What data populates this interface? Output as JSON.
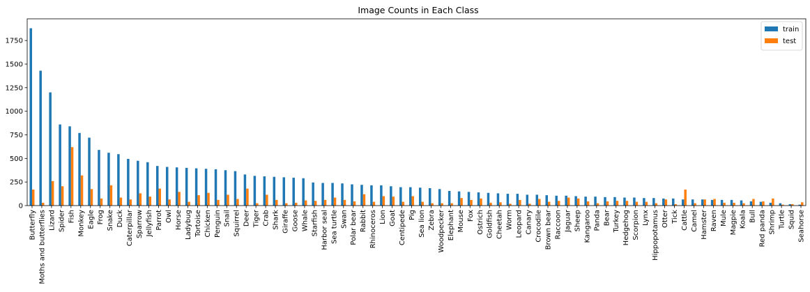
{
  "chart_data": {
    "type": "bar",
    "title": "Image Counts in Each Class",
    "xlabel": "",
    "ylabel": "",
    "ylim": [
      0,
      1980
    ],
    "yticks": [
      0,
      250,
      500,
      750,
      1000,
      1250,
      1500,
      1750
    ],
    "grid": false,
    "legend_position": "top-right",
    "categories": [
      "Butterfly",
      "Moths and butterflies",
      "Lizard",
      "Spider",
      "Fish",
      "Monkey",
      "Eagle",
      "Frog",
      "Snake",
      "Duck",
      "Caterpillar",
      "Sparrow",
      "Jellyfish",
      "Parrot",
      "Owl",
      "Horse",
      "Ladybug",
      "Tortoise",
      "Chicken",
      "Penguin",
      "Snail",
      "Squirrel",
      "Deer",
      "Tiger",
      "Crab",
      "Shark",
      "Giraffe",
      "Goose",
      "Whale",
      "Starfish",
      "Harbor seal",
      "Sea turtle",
      "Swan",
      "Polar bear",
      "Rabbit",
      "Rhinoceros",
      "Lion",
      "Goat",
      "Centipede",
      "Pig",
      "Sea lion",
      "Zebra",
      "Woodpecker",
      "Elephant",
      "Mouse",
      "Fox",
      "Ostrich",
      "Goldfish",
      "Cheetah",
      "Worm",
      "Leopard",
      "Canary",
      "Crocodile",
      "Brown bear",
      "Raccoon",
      "Jaguar",
      "Sheep",
      "Kangaroo",
      "Panda",
      "Bear",
      "Turkey",
      "Hedgehog",
      "Scorpion",
      "Lynx",
      "Hippopotamus",
      "Otter",
      "Tick",
      "Cattle",
      "Camel",
      "Hamster",
      "Raven",
      "Mule",
      "Magpie",
      "Koala",
      "Bull",
      "Red panda",
      "Shrimp",
      "Turtle",
      "Squid",
      "Seahorse"
    ],
    "series": [
      {
        "name": "train",
        "color": "#1f77b4",
        "values": [
          1880,
          1430,
          1200,
          860,
          840,
          770,
          720,
          590,
          560,
          545,
          495,
          475,
          460,
          420,
          410,
          405,
          400,
          395,
          390,
          385,
          375,
          365,
          330,
          315,
          310,
          305,
          300,
          295,
          290,
          245,
          240,
          240,
          235,
          225,
          220,
          215,
          215,
          205,
          195,
          195,
          190,
          185,
          175,
          155,
          150,
          145,
          140,
          135,
          130,
          125,
          125,
          115,
          115,
          110,
          105,
          105,
          100,
          95,
          95,
          90,
          90,
          85,
          85,
          80,
          80,
          75,
          75,
          65,
          65,
          65,
          60,
          60,
          60,
          55,
          45,
          40,
          30,
          25,
          15,
          10
        ]
      },
      {
        "name": "test",
        "color": "#ff7f0e",
        "values": [
          170,
          30,
          260,
          205,
          620,
          320,
          175,
          75,
          215,
          85,
          65,
          130,
          95,
          180,
          65,
          145,
          40,
          110,
          135,
          60,
          115,
          70,
          180,
          25,
          115,
          60,
          25,
          30,
          55,
          50,
          60,
          85,
          60,
          45,
          120,
          40,
          100,
          95,
          40,
          100,
          40,
          25,
          25,
          25,
          80,
          60,
          75,
          30,
          35,
          20,
          60,
          20,
          70,
          40,
          50,
          85,
          75,
          45,
          25,
          45,
          50,
          50,
          40,
          40,
          25,
          65,
          15,
          170,
          25,
          65,
          70,
          30,
          30,
          25,
          70,
          45,
          75,
          10,
          15,
          35
        ]
      }
    ]
  }
}
